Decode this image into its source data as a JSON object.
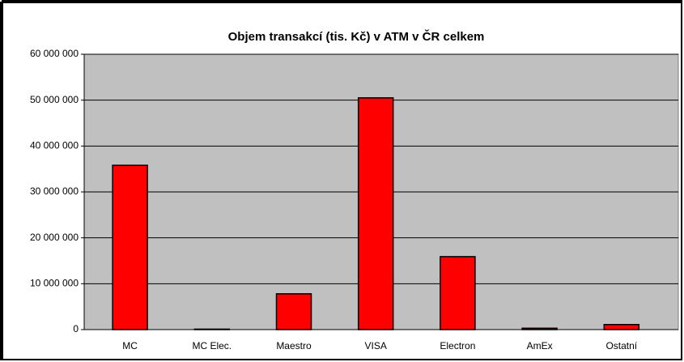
{
  "chart_data": {
    "type": "bar",
    "title": "Objem transakcí (tis. Kč) v ATM v ČR celkem",
    "categories": [
      "MC",
      "MC Elec.",
      "Maestro",
      "VISA",
      "Electron",
      "AmEx",
      "Ostatní"
    ],
    "values": [
      35800000,
      100000,
      7800000,
      50500000,
      15900000,
      300000,
      1100000
    ],
    "color": "#ff0000",
    "ylim": [
      0,
      60000000
    ],
    "yticks": [
      0,
      {
        "value": 10000000,
        "label": "10 000 000"
      },
      {
        "value": 20000000,
        "label": "20 000 000"
      },
      {
        "value": 30000000,
        "label": "30 000 000"
      },
      {
        "value": 40000000,
        "label": "40 000 000"
      },
      {
        "value": 50000000,
        "label": "50 000 000"
      },
      {
        "value": 60000000,
        "label": "60 000 000"
      }
    ],
    "grid": true
  }
}
